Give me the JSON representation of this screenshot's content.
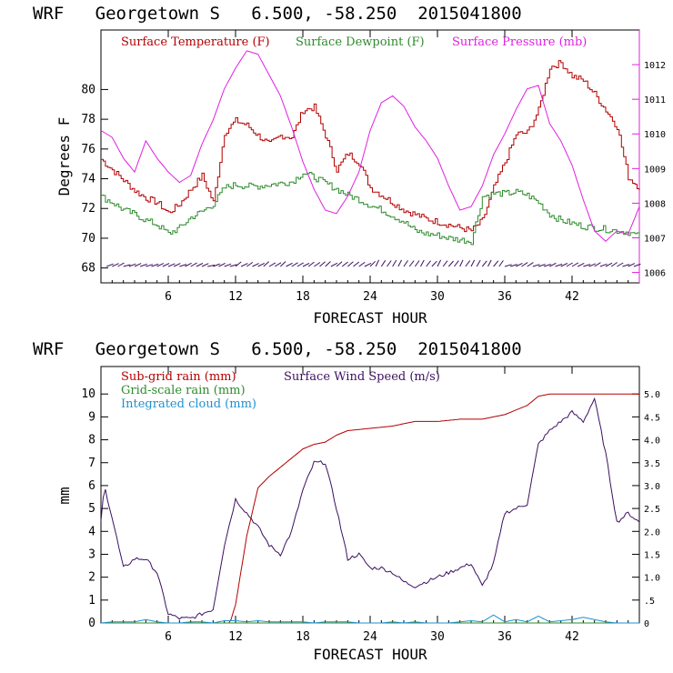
{
  "chart_data": [
    {
      "type": "line",
      "title": "WRF   Georgetown S   6.500, -58.250  2015041800",
      "xlabel": "FORECAST HOUR",
      "ylabel": "Degrees F",
      "xlim": [
        0,
        48
      ],
      "ylim": [
        67,
        84
      ],
      "y2lim": [
        1005.7,
        1013.0
      ],
      "x_ticks": [
        6,
        12,
        18,
        24,
        30,
        36,
        42
      ],
      "y_ticks": [
        68,
        70,
        72,
        74,
        76,
        78,
        80
      ],
      "y2_ticks": [
        1006,
        1007,
        1008,
        1009,
        1010,
        1011,
        1012
      ],
      "legend_position": "top",
      "colors": {
        "temperature": "#b30000",
        "dewpoint": "#2e8b2e",
        "pressure": "#e020e0",
        "wind_barbs": "#3c1060"
      },
      "series": [
        {
          "name": "Surface Temperature (F)",
          "axis": "left",
          "x": [
            0,
            1,
            2,
            3,
            4,
            5,
            6,
            7,
            8,
            9,
            10,
            11,
            12,
            13,
            14,
            15,
            16,
            17,
            18,
            19,
            20,
            21,
            22,
            23,
            24,
            25,
            26,
            27,
            28,
            29,
            30,
            31,
            32,
            33,
            34,
            35,
            36,
            37,
            38,
            39,
            40,
            41,
            42,
            43,
            44,
            45,
            46,
            47,
            48
          ],
          "values": [
            75.3,
            74.6,
            73.9,
            73.2,
            72.7,
            72.4,
            71.7,
            72.3,
            73.3,
            74.2,
            72.4,
            77.1,
            77.9,
            77.6,
            76.9,
            76.3,
            76.9,
            76.8,
            78.6,
            78.8,
            76.9,
            74.6,
            75.7,
            75.1,
            73.4,
            72.9,
            72.4,
            71.9,
            71.6,
            71.3,
            71.1,
            70.9,
            70.7,
            70.5,
            71.2,
            73.4,
            75.1,
            77.0,
            77.1,
            78.6,
            81.5,
            81.8,
            80.9,
            80.6,
            79.7,
            78.6,
            77.5,
            74.1,
            73.4
          ]
        },
        {
          "name": "Surface Dewpoint (F)",
          "axis": "left",
          "x": [
            0,
            1,
            2,
            3,
            4,
            5,
            6,
            7,
            8,
            9,
            10,
            11,
            12,
            13,
            14,
            15,
            16,
            17,
            18,
            19,
            20,
            21,
            22,
            23,
            24,
            25,
            26,
            27,
            28,
            29,
            30,
            31,
            32,
            33,
            34,
            35,
            36,
            37,
            38,
            39,
            40,
            41,
            42,
            43,
            44,
            45,
            46,
            47,
            48
          ],
          "values": [
            72.8,
            72.4,
            71.9,
            71.6,
            71.2,
            70.9,
            70.3,
            70.7,
            71.4,
            71.8,
            72.3,
            73.4,
            73.6,
            73.5,
            73.5,
            73.6,
            73.7,
            73.8,
            74.4,
            74.1,
            73.7,
            73.3,
            72.9,
            72.6,
            72.2,
            71.9,
            71.5,
            71.1,
            70.5,
            70.3,
            70.2,
            70.0,
            69.9,
            69.8,
            72.8,
            73.0,
            73.0,
            73.1,
            72.9,
            72.4,
            71.6,
            71.2,
            71.0,
            70.8,
            70.7,
            70.6,
            70.5,
            70.4,
            70.1
          ]
        },
        {
          "name": "Surface Pressure (mb)",
          "axis": "right",
          "x": [
            0,
            1,
            2,
            3,
            4,
            5,
            6,
            7,
            8,
            9,
            10,
            11,
            12,
            13,
            14,
            15,
            16,
            17,
            18,
            19,
            20,
            21,
            22,
            23,
            24,
            25,
            26,
            27,
            28,
            29,
            30,
            31,
            32,
            33,
            34,
            35,
            36,
            37,
            38,
            39,
            40,
            41,
            42,
            43,
            44,
            45,
            46,
            47,
            48
          ],
          "values": [
            1010.1,
            1009.9,
            1009.3,
            1008.9,
            1009.8,
            1009.3,
            1008.9,
            1008.6,
            1008.8,
            1009.7,
            1010.4,
            1011.3,
            1011.9,
            1012.4,
            1012.3,
            1011.7,
            1011.1,
            1010.2,
            1009.2,
            1008.4,
            1007.8,
            1007.7,
            1008.2,
            1008.9,
            1010.1,
            1010.9,
            1011.1,
            1010.8,
            1010.2,
            1009.8,
            1009.3,
            1008.5,
            1007.8,
            1007.9,
            1008.5,
            1009.4,
            1010.0,
            1010.7,
            1011.3,
            1011.4,
            1010.3,
            1009.8,
            1009.1,
            1008.1,
            1007.2,
            1006.9,
            1007.2,
            1007.1,
            1007.9
          ]
        }
      ]
    },
    {
      "type": "line",
      "title": "WRF   Georgetown S   6.500, -58.250  2015041800",
      "xlabel": "FORECAST HOUR",
      "ylabel": "mm",
      "xlim": [
        0,
        48
      ],
      "ylim": [
        0,
        11.2
      ],
      "y2lim": [
        0,
        5.6
      ],
      "x_ticks": [
        6,
        12,
        18,
        24,
        30,
        36,
        42
      ],
      "y_ticks": [
        0,
        1,
        2,
        3,
        4,
        5,
        6,
        7,
        8,
        9,
        10
      ],
      "y2_ticks": [
        "0",
        ".5",
        "1.0",
        "1.5",
        "2.0",
        "2.5",
        "3.0",
        "3.5",
        "4.0",
        "4.5",
        "5.0"
      ],
      "legend_position": "top-left",
      "colors": {
        "subgrid": "#b30000",
        "gridscale": "#2e8b2e",
        "cloud": "#1e90d0",
        "wind": "#3c1060"
      },
      "series": [
        {
          "name": "Sub-grid rain (mm)",
          "axis": "left",
          "x": [
            0,
            11.5,
            12,
            13,
            14,
            15,
            16,
            17,
            18,
            19,
            20,
            21,
            22,
            24,
            26,
            28,
            30,
            32,
            34,
            36,
            38,
            39,
            40,
            42,
            44,
            46,
            48
          ],
          "values": [
            0,
            0,
            0.8,
            3.8,
            5.9,
            6.4,
            6.8,
            7.2,
            7.6,
            7.8,
            7.9,
            8.2,
            8.4,
            8.5,
            8.6,
            8.8,
            8.8,
            8.9,
            8.9,
            9.1,
            9.5,
            9.9,
            10.0,
            10.0,
            10.0,
            10.0,
            10.0
          ]
        },
        {
          "name": "Grid-scale rain (mm)",
          "axis": "left",
          "x": [
            0,
            48
          ],
          "values": [
            0,
            0
          ]
        },
        {
          "name": "Integrated cloud (mm)",
          "axis": "left",
          "x": [
            0,
            1,
            2,
            3,
            4,
            5,
            6,
            7,
            8,
            9,
            10,
            11,
            12,
            13,
            14,
            15,
            16,
            17,
            18,
            19,
            20,
            21,
            22,
            23,
            24,
            25,
            26,
            27,
            28,
            29,
            30,
            31,
            32,
            33,
            34,
            35,
            36,
            37,
            38,
            39,
            40,
            41,
            42,
            43,
            44,
            45,
            46,
            47,
            48
          ],
          "values": [
            0,
            0.05,
            0.05,
            0.05,
            0.15,
            0.05,
            0,
            0,
            0.05,
            0.05,
            0,
            0.1,
            0.1,
            0.05,
            0.1,
            0.05,
            0.05,
            0.05,
            0.05,
            0,
            0.05,
            0.05,
            0.05,
            0,
            0,
            0,
            0.05,
            0,
            0.05,
            0,
            0,
            0,
            0.05,
            0.1,
            0.05,
            0.35,
            0.05,
            0.15,
            0.05,
            0.3,
            0.05,
            0.1,
            0.15,
            0.25,
            0.15,
            0.05,
            0,
            0,
            0
          ]
        },
        {
          "name": "Surface Wind Speed (m/s)",
          "axis": "right",
          "x": [
            0,
            0.3,
            1,
            2,
            3,
            4,
            5,
            6,
            7,
            8,
            9,
            10,
            11,
            12,
            13,
            14,
            15,
            16,
            17,
            18,
            19,
            20,
            21,
            22,
            23,
            24,
            25,
            26,
            27,
            28,
            29,
            30,
            31,
            32,
            33,
            34,
            35,
            36,
            37,
            38,
            39,
            40,
            41,
            42,
            43,
            44,
            45,
            46,
            47,
            48
          ],
          "values": [
            2.2,
            3.0,
            2.3,
            1.2,
            1.4,
            1.4,
            1.1,
            0.2,
            0.1,
            0.1,
            0.2,
            0.3,
            1.7,
            2.7,
            2.4,
            2.1,
            1.7,
            1.5,
            2.0,
            2.9,
            3.5,
            3.5,
            2.5,
            1.4,
            1.5,
            1.2,
            1.2,
            1.1,
            0.9,
            0.8,
            0.9,
            1.0,
            1.1,
            1.2,
            1.3,
            0.8,
            1.3,
            2.4,
            2.5,
            2.6,
            3.9,
            4.2,
            4.4,
            4.6,
            4.4,
            4.9,
            3.7,
            2.2,
            2.4,
            2.2
          ]
        }
      ]
    }
  ],
  "top_legend": {
    "temperature": "Surface Temperature (F)",
    "dewpoint": "Surface Dewpoint (F)",
    "pressure": "Surface Pressure (mb)"
  },
  "bottom_legend": {
    "subgrid": "Sub-grid rain (mm)",
    "wind": "Surface Wind Speed (m/s)",
    "gridscale": "Grid-scale rain (mm)",
    "cloud": "Integrated cloud (mm)"
  },
  "titles": {
    "top": "WRF   Georgetown S   6.500, -58.250  2015041800",
    "bottom": "WRF   Georgetown S   6.500, -58.250  2015041800"
  },
  "axis_labels": {
    "top_x": "FORECAST HOUR",
    "top_y": "Degrees F",
    "bottom_x": "FORECAST HOUR",
    "bottom_y": "mm"
  }
}
